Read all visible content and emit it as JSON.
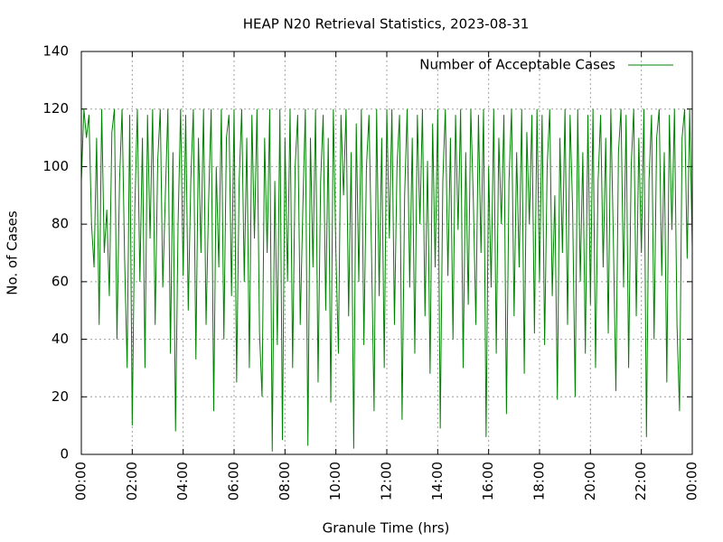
{
  "chart_data": {
    "type": "line",
    "title": "HEAP N20 Retrieval Statistics, 2023-08-31",
    "x_label": "Granule Time (hrs)",
    "y_label": "No. of Cases",
    "legend_position": "upper right",
    "grid": true,
    "xlim": [
      0,
      24
    ],
    "ylim": [
      0,
      140
    ],
    "xticks": [
      {
        "value": 0,
        "label": "00:00"
      },
      {
        "value": 2,
        "label": "02:00"
      },
      {
        "value": 4,
        "label": "04:00"
      },
      {
        "value": 6,
        "label": "06:00"
      },
      {
        "value": 8,
        "label": "08:00"
      },
      {
        "value": 10,
        "label": "10:00"
      },
      {
        "value": 12,
        "label": "12:00"
      },
      {
        "value": 14,
        "label": "14:00"
      },
      {
        "value": 16,
        "label": "16:00"
      },
      {
        "value": 18,
        "label": "18:00"
      },
      {
        "value": 20,
        "label": "20:00"
      },
      {
        "value": 22,
        "label": "22:00"
      },
      {
        "value": 24,
        "label": "00:00"
      }
    ],
    "yticks": [
      0,
      20,
      40,
      60,
      80,
      100,
      120,
      140
    ],
    "x": [
      0,
      0.1,
      0.2,
      0.3,
      0.4,
      0.5,
      0.6,
      0.7,
      0.8,
      0.9,
      1,
      1.1,
      1.2,
      1.3,
      1.4,
      1.5,
      1.6,
      1.7,
      1.8,
      1.9,
      2,
      2.1,
      2.2,
      2.3,
      2.4,
      2.5,
      2.6,
      2.7,
      2.8,
      2.9,
      3,
      3.1,
      3.2,
      3.3,
      3.4,
      3.5,
      3.6,
      3.7,
      3.8,
      3.9,
      4,
      4.1,
      4.2,
      4.3,
      4.4,
      4.5,
      4.6,
      4.7,
      4.8,
      4.9,
      5,
      5.1,
      5.2,
      5.3,
      5.4,
      5.5,
      5.6,
      5.7,
      5.8,
      5.9,
      6,
      6.1,
      6.2,
      6.3,
      6.4,
      6.5,
      6.6,
      6.7,
      6.8,
      6.9,
      7,
      7.1,
      7.2,
      7.3,
      7.4,
      7.5,
      7.6,
      7.7,
      7.8,
      7.9,
      8,
      8.1,
      8.2,
      8.3,
      8.4,
      8.5,
      8.6,
      8.7,
      8.8,
      8.9,
      9,
      9.1,
      9.2,
      9.3,
      9.4,
      9.5,
      9.6,
      9.7,
      9.8,
      9.9,
      10,
      10.1,
      10.2,
      10.3,
      10.4,
      10.5,
      10.6,
      10.7,
      10.8,
      10.9,
      11,
      11.1,
      11.2,
      11.3,
      11.4,
      11.5,
      11.6,
      11.7,
      11.8,
      11.9,
      12,
      12.1,
      12.2,
      12.3,
      12.4,
      12.5,
      12.6,
      12.7,
      12.8,
      12.9,
      13,
      13.1,
      13.2,
      13.3,
      13.4,
      13.5,
      13.6,
      13.7,
      13.8,
      13.9,
      14,
      14.1,
      14.2,
      14.3,
      14.4,
      14.5,
      14.6,
      14.7,
      14.8,
      14.9,
      15,
      15.1,
      15.2,
      15.3,
      15.4,
      15.5,
      15.6,
      15.7,
      15.8,
      15.9,
      16,
      16.1,
      16.2,
      16.3,
      16.4,
      16.5,
      16.6,
      16.7,
      16.8,
      16.9,
      17,
      17.1,
      17.2,
      17.3,
      17.4,
      17.5,
      17.6,
      17.7,
      17.8,
      17.9,
      18,
      18.1,
      18.2,
      18.3,
      18.4,
      18.5,
      18.6,
      18.7,
      18.8,
      18.9,
      19,
      19.1,
      19.2,
      19.3,
      19.4,
      19.5,
      19.6,
      19.7,
      19.8,
      19.9,
      20,
      20.1,
      20.2,
      20.3,
      20.4,
      20.5,
      20.6,
      20.7,
      20.8,
      20.9,
      21,
      21.1,
      21.2,
      21.3,
      21.4,
      21.5,
      21.6,
      21.7,
      21.8,
      21.9,
      22,
      22.1,
      22.2,
      22.3,
      22.4,
      22.5,
      22.6,
      22.7,
      22.8,
      22.9,
      23,
      23.1,
      23.2,
      23.3,
      23.4,
      23.5,
      23.6,
      23.7,
      23.8,
      23.9,
      24
    ],
    "series": [
      {
        "name": "Number of Acceptable Cases",
        "color": "#008000",
        "values": [
          95,
          120,
          110,
          118,
          80,
          65,
          110,
          45,
          120,
          70,
          85,
          55,
          112,
          120,
          40,
          95,
          120,
          68,
          30,
          118,
          10,
          85,
          120,
          60,
          110,
          30,
          118,
          75,
          120,
          45,
          102,
          120,
          58,
          90,
          120,
          35,
          105,
          8,
          80,
          120,
          62,
          118,
          50,
          95,
          120,
          33,
          110,
          70,
          120,
          45,
          88,
          120,
          15,
          100,
          65,
          120,
          40,
          110,
          118,
          55,
          120,
          25,
          95,
          120,
          60,
          110,
          30,
          118,
          75,
          120,
          42,
          20,
          110,
          70,
          120,
          1,
          95,
          38,
          120,
          5,
          110,
          60,
          120,
          30,
          100,
          118,
          45,
          85,
          120,
          3,
          110,
          65,
          120,
          25,
          95,
          118,
          50,
          110,
          18,
          120,
          70,
          35,
          118,
          90,
          120,
          48,
          105,
          2,
          115,
          60,
          120,
          38,
          100,
          118,
          70,
          15,
          120,
          55,
          110,
          30,
          120,
          75,
          120,
          45,
          100,
          118,
          12,
          90,
          120,
          58,
          110,
          35,
          118,
          80,
          120,
          48,
          102,
          28,
          115,
          65,
          120,
          9,
          95,
          120,
          62,
          110,
          40,
          118,
          78,
          120,
          30,
          105,
          52,
          120,
          88,
          45,
          118,
          70,
          120,
          6,
          100,
          58,
          120,
          35,
          110,
          80,
          118,
          14,
          95,
          120,
          48,
          105,
          65,
          120,
          28,
          112,
          80,
          118,
          42,
          120,
          60,
          118,
          38,
          100,
          120,
          55,
          90,
          19,
          110,
          70,
          120,
          45,
          118,
          85,
          20,
          120,
          60,
          105,
          35,
          118,
          52,
          120,
          30,
          95,
          118,
          65,
          110,
          42,
          120,
          75,
          22,
          105,
          120,
          58,
          118,
          30,
          100,
          120,
          48,
          110,
          70,
          120,
          6,
          95,
          118,
          40,
          110,
          120,
          62,
          105,
          25,
          118,
          78,
          120,
          45,
          15,
          110,
          120,
          68,
          120,
          72
        ]
      }
    ]
  }
}
